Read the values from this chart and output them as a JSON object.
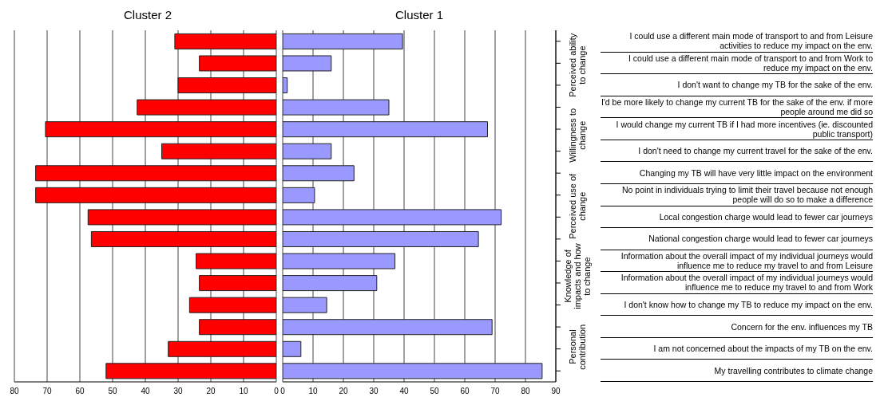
{
  "chart_data": [
    {
      "type": "bar",
      "title": "Cluster 2",
      "orientation": "horizontal",
      "categories": [
        null,
        null,
        null,
        null,
        null,
        null,
        null,
        null,
        null,
        null,
        null,
        null,
        null,
        null,
        null,
        null
      ],
      "series": [
        {
          "color": "#ff0000",
          "values": [
            31,
            23.5,
            30,
            42.5,
            70.5,
            35,
            73.5,
            73.5,
            57.5,
            56.5,
            24.5,
            23.5,
            26.5,
            23.5,
            33,
            52
          ]
        }
      ],
      "xlim": [
        80,
        0
      ],
      "xticks": [
        80,
        70,
        60,
        50,
        40,
        30,
        20,
        10,
        0
      ],
      "grid": "x",
      "tick_labels": "x"
    },
    {
      "type": "bar",
      "title": "Cluster 1",
      "orientation": "horizontal",
      "categories": [
        "I could use a different main mode of transport to and from Leisure activities to reduce my impact on the env.",
        "I could use a different main mode of transport to and from Work to reduce my impact on the env.",
        "I don't want to change my TB for the sake of the env.",
        "I'd be more likely to change my current TB for the sake of the env. if more people around me did so",
        "I would change my current TB if I had more incentives (ie. discounted public transport)",
        "I don't need to change my current travel for the sake of the env.",
        "Changing my TB will have very little impact on the environment",
        "No point in individuals trying to limit their travel because not enough people will do so to make a difference",
        "Local congestion charge would lead to fewer car journeys",
        "National congestion charge would lead to fewer car journeys",
        "Information about the overall impact of my individual journeys would influence me to reduce my travel to and from Leisure",
        "Information about the overall impact of my individual journeys would influence me to reduce my travel to and from Work",
        "I don't know how to change my TB to reduce my impact on the env.",
        "Concern for the env. influences my TB",
        "I am not concerned about the impacts of my TB on the env.",
        "My travelling contributes to climate change"
      ],
      "series": [
        {
          "color": "#9999ff",
          "values": [
            39.5,
            16,
            1.5,
            35,
            67.5,
            16,
            23.5,
            10.5,
            72,
            64.5,
            37,
            31,
            14.5,
            69,
            6,
            85.5
          ]
        }
      ],
      "xlim": [
        0,
        90
      ],
      "xticks": [
        0,
        10,
        20,
        30,
        40,
        50,
        60,
        70,
        80,
        90
      ],
      "grid": "x",
      "annotations": [
        "Perceived ability to change",
        "Willingness to change",
        "Perceived use of change",
        "Knowledge of impacts and how to change",
        "Personal contribution"
      ]
    }
  ]
}
